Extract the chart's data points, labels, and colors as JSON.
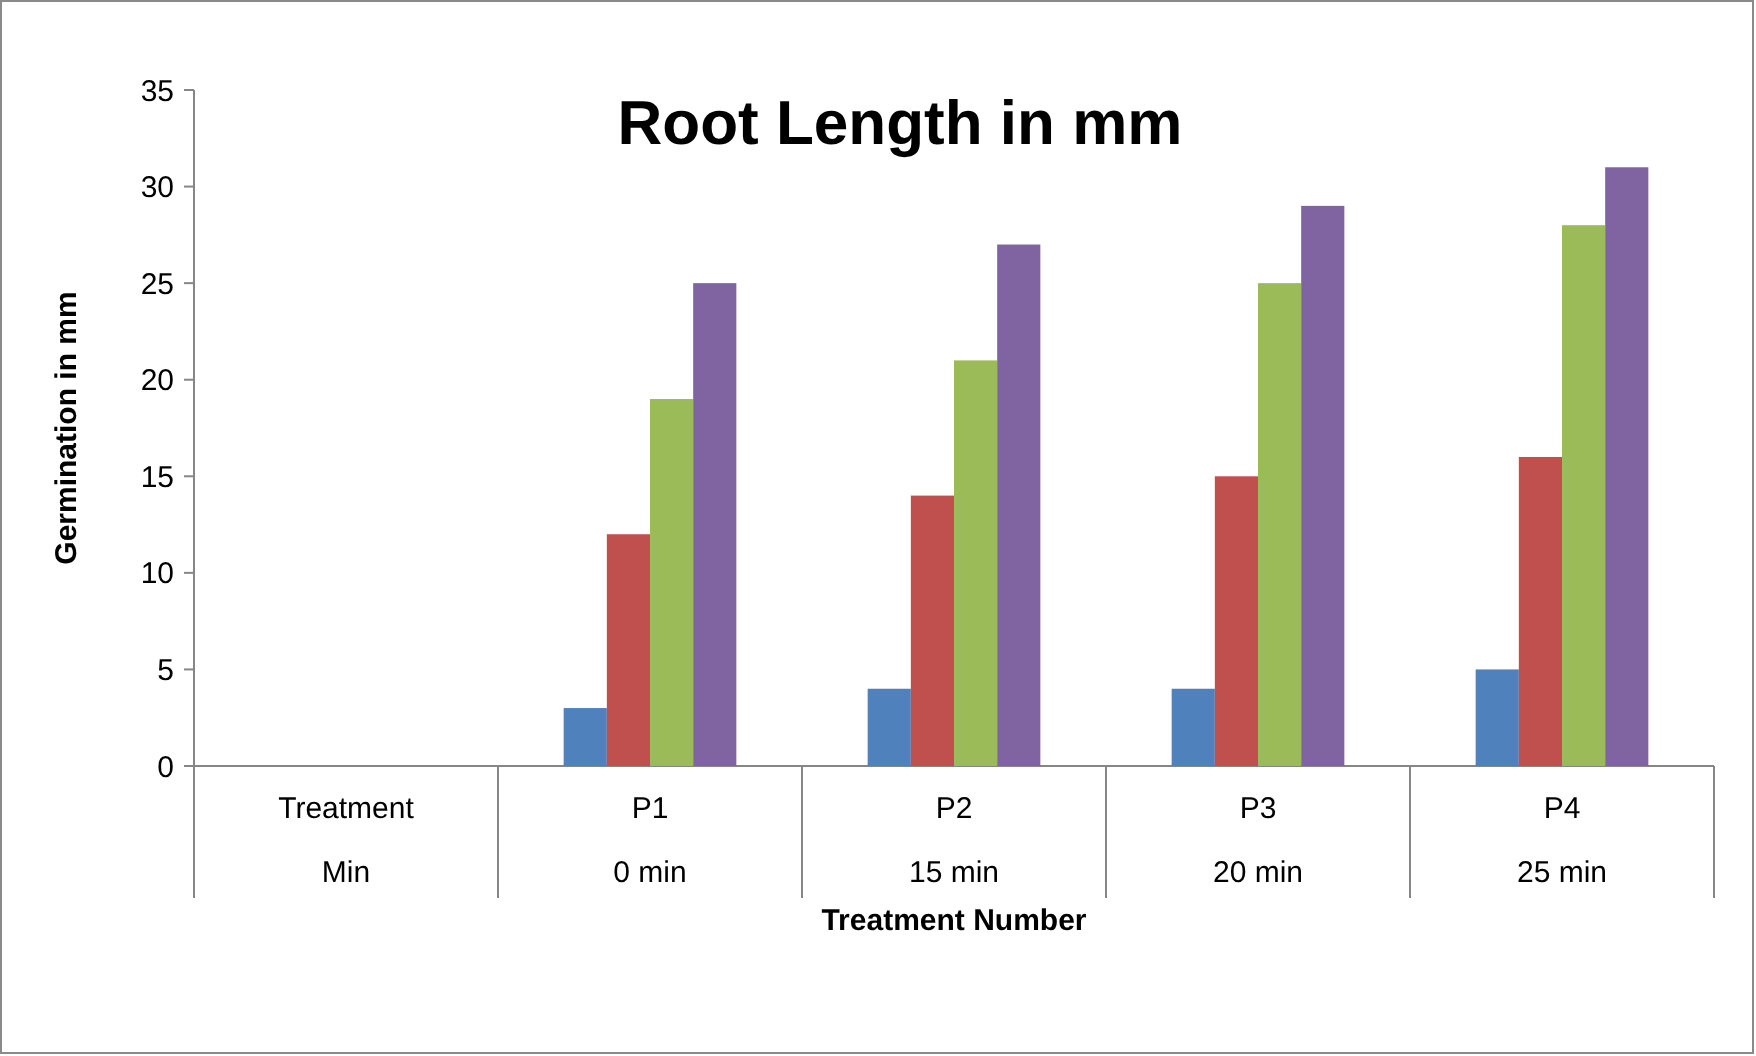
{
  "chart_data": {
    "type": "bar",
    "title": "Root Length in mm",
    "xlabel": "Treatment Number",
    "ylabel": "Germination in mm",
    "categories": [
      "Treatment\nMin",
      "P1\n0 min",
      "P2\n15 min",
      "P3\n20 min",
      "P4\n25 min"
    ],
    "series": [
      {
        "color": "#4f81bd",
        "values": [
          null,
          3,
          4,
          4,
          5
        ]
      },
      {
        "color": "#c0504d",
        "values": [
          null,
          12,
          14,
          15,
          16
        ]
      },
      {
        "color": "#9bbb59",
        "values": [
          null,
          19,
          21,
          25,
          28
        ]
      },
      {
        "color": "#8064a2",
        "values": [
          null,
          25,
          27,
          29,
          31
        ]
      }
    ],
    "ylim": [
      0,
      35
    ],
    "yticks": [
      0,
      5,
      10,
      15,
      20,
      25,
      30,
      35
    ],
    "grid": false
  }
}
